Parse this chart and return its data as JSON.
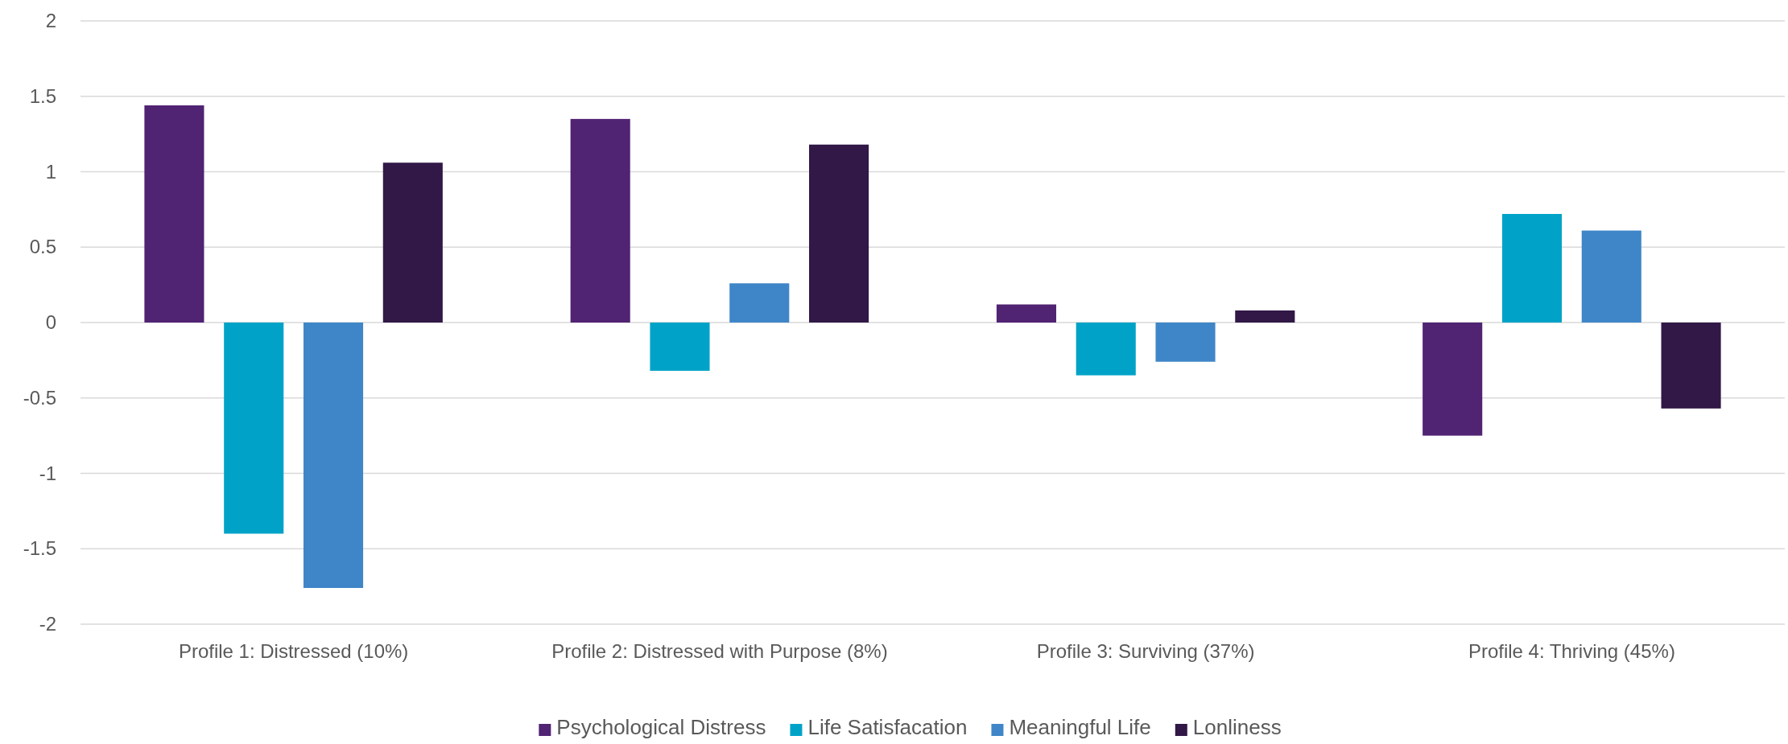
{
  "chart_data": {
    "type": "bar",
    "categories": [
      "Profile 1: Distressed (10%)",
      "Profile 2: Distressed with Purpose (8%)",
      "Profile 3: Surviving (37%)",
      "Profile 4: Thriving (45%)"
    ],
    "series": [
      {
        "name": "Psychological Distress",
        "color": "#512373",
        "values": [
          1.44,
          1.35,
          0.12,
          -0.75
        ]
      },
      {
        "name": "Life Satisfacation",
        "color": "#00a3c7",
        "values": [
          -1.4,
          -0.32,
          -0.35,
          0.72
        ]
      },
      {
        "name": "Meaningful Life",
        "color": "#3f86c8",
        "values": [
          -1.76,
          0.26,
          -0.26,
          0.61
        ]
      },
      {
        "name": "Lonliness",
        "color": "#311847",
        "values": [
          1.06,
          1.18,
          0.08,
          -0.57
        ]
      }
    ],
    "ylim": [
      -2,
      2
    ],
    "yticks": [
      -2,
      -1.5,
      -1,
      -0.5,
      0,
      0.5,
      1,
      1.5,
      2
    ],
    "grid": "y",
    "legend": "bottom"
  }
}
